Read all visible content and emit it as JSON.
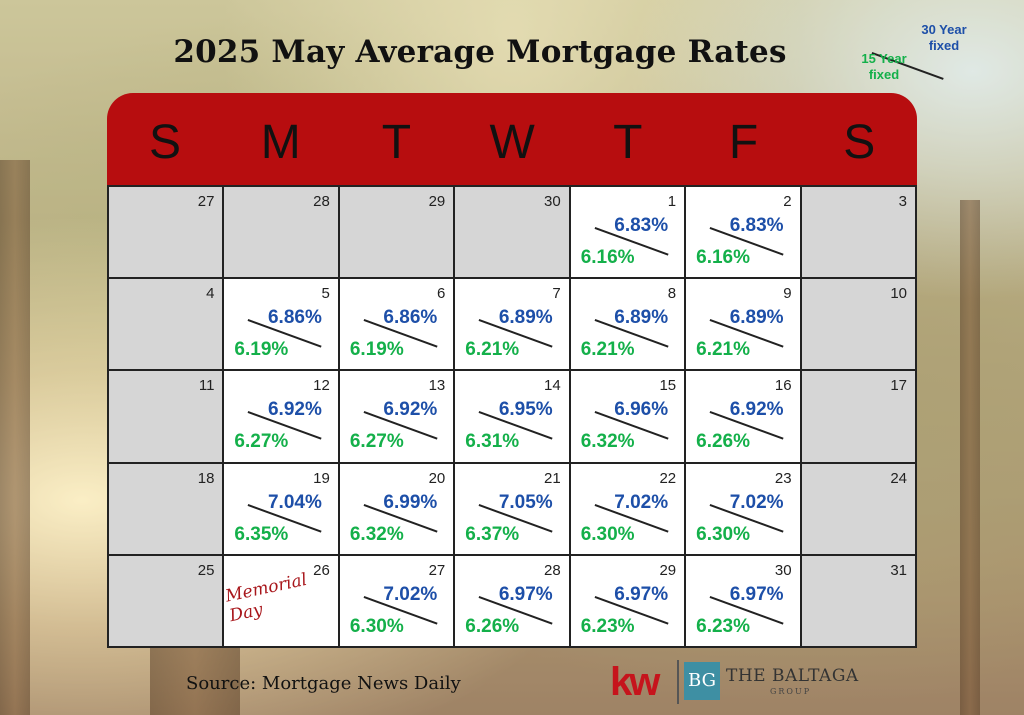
{
  "title": "2025 May Average Mortgage Rates",
  "legend": {
    "rate30_label": "30 Year fixed",
    "rate15_label": "15 Year fixed"
  },
  "colors": {
    "header": "#b70d0f",
    "rate30": "#1d4fa8",
    "rate15": "#14b04a",
    "off_cell": "#d6d6d6"
  },
  "weekdays": [
    "S",
    "M",
    "T",
    "W",
    "T",
    "F",
    "S"
  ],
  "weeks": [
    [
      {
        "day": "27",
        "off": true
      },
      {
        "day": "28",
        "off": true
      },
      {
        "day": "29",
        "off": true
      },
      {
        "day": "30",
        "off": true
      },
      {
        "day": "1",
        "r30": "6.83%",
        "r15": "6.16%"
      },
      {
        "day": "2",
        "r30": "6.83%",
        "r15": "6.16%"
      },
      {
        "day": "3",
        "off": true
      }
    ],
    [
      {
        "day": "4",
        "off": true
      },
      {
        "day": "5",
        "r30": "6.86%",
        "r15": "6.19%"
      },
      {
        "day": "6",
        "r30": "6.86%",
        "r15": "6.19%"
      },
      {
        "day": "7",
        "r30": "6.89%",
        "r15": "6.21%"
      },
      {
        "day": "8",
        "r30": "6.89%",
        "r15": "6.21%"
      },
      {
        "day": "9",
        "r30": "6.89%",
        "r15": "6.21%"
      },
      {
        "day": "10",
        "off": true
      }
    ],
    [
      {
        "day": "11",
        "off": true
      },
      {
        "day": "12",
        "r30": "6.92%",
        "r15": "6.27%"
      },
      {
        "day": "13",
        "r30": "6.92%",
        "r15": "6.27%"
      },
      {
        "day": "14",
        "r30": "6.95%",
        "r15": "6.31%"
      },
      {
        "day": "15",
        "r30": "6.96%",
        "r15": "6.32%"
      },
      {
        "day": "16",
        "r30": "6.92%",
        "r15": "6.26%"
      },
      {
        "day": "17",
        "off": true
      }
    ],
    [
      {
        "day": "18",
        "off": true
      },
      {
        "day": "19",
        "r30": "7.04%",
        "r15": "6.35%"
      },
      {
        "day": "20",
        "r30": "6.99%",
        "r15": "6.32%"
      },
      {
        "day": "21",
        "r30": "7.05%",
        "r15": "6.37%"
      },
      {
        "day": "22",
        "r30": "7.02%",
        "r15": "6.30%"
      },
      {
        "day": "23",
        "r30": "7.02%",
        "r15": "6.30%"
      },
      {
        "day": "24",
        "off": true
      }
    ],
    [
      {
        "day": "25",
        "off": true
      },
      {
        "day": "26",
        "holiday": "Memorial Day"
      },
      {
        "day": "27",
        "r30": "7.02%",
        "r15": "6.30%"
      },
      {
        "day": "28",
        "r30": "6.97%",
        "r15": "6.26%"
      },
      {
        "day": "29",
        "r30": "6.97%",
        "r15": "6.23%"
      },
      {
        "day": "30",
        "r30": "6.97%",
        "r15": "6.23%"
      },
      {
        "day": "31",
        "off": true
      }
    ]
  ],
  "source": "Source: Mortgage News Daily",
  "brand": {
    "kw": "kw",
    "bg": "BG",
    "name": "THE BALTAGA",
    "sub": "GROUP"
  }
}
